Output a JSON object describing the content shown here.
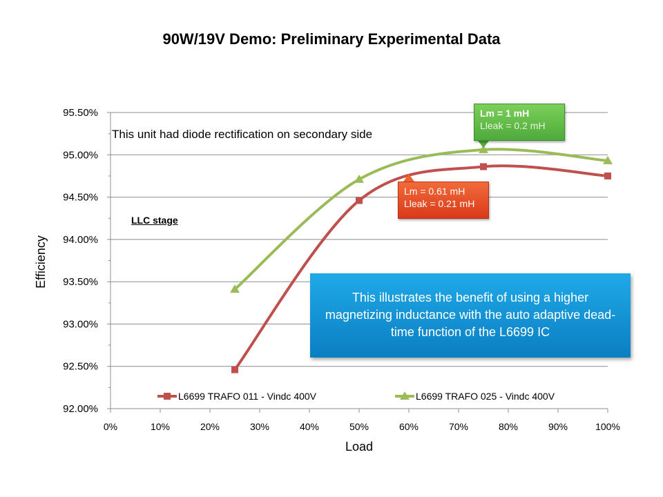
{
  "page": {
    "title": "90W/19V Demo: Preliminary Experimental Data",
    "note": "This unit had diode rectification on secondary side",
    "stage_label": "LLC stage",
    "callout_green": {
      "line1": "Lm = 1 mH",
      "line2": "Lleak = 0.2 mH",
      "color": "#5cb84a"
    },
    "callout_red": {
      "line1": "Lm = 0.61 mH",
      "line2": "Lleak = 0.21 mH",
      "color": "#e8491e"
    },
    "info_box": "This illustrates the benefit of using a higher magnetizing  inductance with the auto adaptive dead-time function of the L6699 IC"
  },
  "chart_data": {
    "type": "line",
    "title": "90W/19V Demo: Preliminary Experimental Data",
    "xlabel": "Load",
    "ylabel": "Efficiency",
    "xlim": [
      0,
      100
    ],
    "ylim": [
      92.0,
      95.5
    ],
    "x_ticks": [
      "0%",
      "10%",
      "20%",
      "30%",
      "40%",
      "50%",
      "60%",
      "70%",
      "80%",
      "90%",
      "100%"
    ],
    "y_ticks": [
      "92.00%",
      "92.50%",
      "93.00%",
      "93.50%",
      "94.00%",
      "94.50%",
      "95.00%",
      "95.50%"
    ],
    "grid": true,
    "legend_position": "bottom",
    "series": [
      {
        "name": "L6699 TRAFO 011 - Vindc 400V",
        "color": "#c0504d",
        "marker": "square",
        "x": [
          25,
          50,
          75,
          100
        ],
        "y": [
          92.46,
          94.46,
          94.86,
          94.75
        ]
      },
      {
        "name": "L6699 TRAFO 025 - Vindc 400V",
        "color": "#9bbb59",
        "marker": "triangle",
        "x": [
          25,
          50,
          75,
          100
        ],
        "y": [
          93.41,
          94.71,
          95.06,
          94.93
        ]
      }
    ]
  }
}
